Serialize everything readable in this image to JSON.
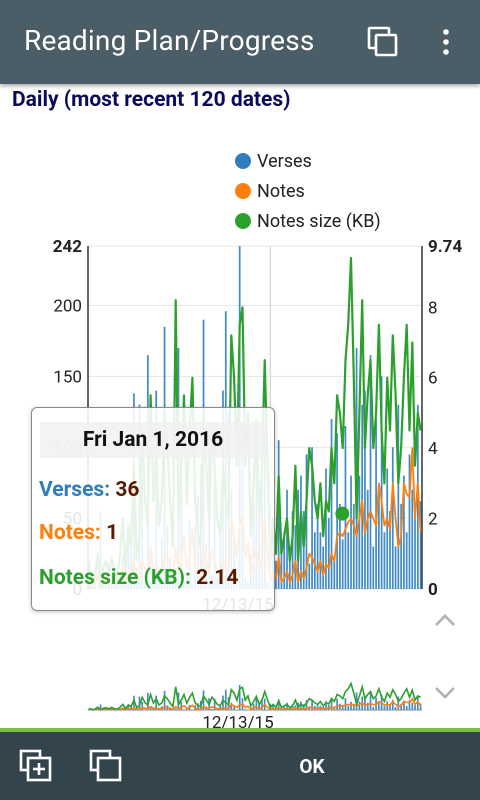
{
  "app_bar": {
    "title": "Reading Plan/Progress",
    "icons": [
      "copy-icon",
      "overflow-menu-icon"
    ]
  },
  "section_title": "Daily (most recent 120 dates)",
  "colors": {
    "verses": "#2e7ebf",
    "notes": "#ff7f0e",
    "notes_size": "#2ca02c",
    "app_bar": "#4b5d66",
    "bottom_bar": "#34444c",
    "accent_line": "#7ac143"
  },
  "chart_data": {
    "type": "bar+line",
    "title": "Daily (most recent 120 dates)",
    "legend": {
      "placement": "top",
      "entries": [
        "Verses",
        "Notes",
        "Notes size (KB)"
      ]
    },
    "y_left": {
      "min": 0,
      "max": 242,
      "ticks": [
        0,
        50,
        100,
        150,
        200,
        242
      ],
      "tick_labels": [
        "0",
        "50",
        "100",
        "150",
        "200",
        "242"
      ]
    },
    "y_right": {
      "min": 0,
      "max": 9.74,
      "ticks": [
        0,
        2,
        4,
        6,
        8,
        9.74
      ],
      "tick_labels": [
        "0",
        "2",
        "4",
        "6",
        "8",
        "9.74"
      ]
    },
    "x": {
      "count": 120,
      "labeled_tick": {
        "index": 65,
        "label": "12/13/15"
      }
    },
    "grid": true,
    "series": [
      {
        "name": "Verses",
        "type": "bar",
        "axis": "left",
        "values": [
          20,
          5,
          3,
          2,
          55,
          4,
          8,
          18,
          10,
          5,
          12,
          3,
          25,
          6,
          40,
          50,
          138,
          15,
          130,
          78,
          4,
          165,
          25,
          15,
          140,
          11,
          35,
          185,
          45,
          22,
          5,
          15,
          170,
          80,
          6,
          12,
          48,
          3,
          45,
          65,
          88,
          190,
          32,
          115,
          10,
          108,
          8,
          40,
          140,
          196,
          125,
          70,
          36,
          3,
          242,
          115,
          8,
          5,
          25,
          60,
          118,
          70,
          100,
          110,
          5,
          60,
          50,
          20,
          105,
          35,
          40,
          70,
          30,
          55,
          45,
          70,
          80,
          55,
          95,
          18,
          100,
          40,
          60,
          40,
          30,
          85,
          50,
          120,
          20,
          110,
          60,
          35,
          115,
          40,
          80,
          60,
          170,
          80,
          130,
          140,
          70,
          165,
          30,
          120,
          70,
          150,
          40,
          85,
          55,
          100,
          30,
          130,
          60,
          80,
          40,
          95,
          70,
          50,
          130,
          62
        ]
      },
      {
        "name": "Notes",
        "type": "line",
        "axis": "right",
        "values": [
          0.2,
          0,
          0.1,
          0.4,
          0,
          0.2,
          0.3,
          0.1,
          0.3,
          0.2,
          0.1,
          0.3,
          0.6,
          0.2,
          0.5,
          0.3,
          0.8,
          0.2,
          0.4,
          0.8,
          0.6,
          0.4,
          1.2,
          0.6,
          0.7,
          0.4,
          0.5,
          1.0,
          0.9,
          0.6,
          0.3,
          1.2,
          0.5,
          0.8,
          1.5,
          0.6,
          0.9,
          1.7,
          0.6,
          0.4,
          0.3,
          1.2,
          0.8,
          0.5,
          1.1,
          0.8,
          0.5,
          0.4,
          0.8,
          0.6,
          0.5,
          2.0,
          1.5,
          0.9,
          1.8,
          2.1,
          0.9,
          1.3,
          0.4,
          0.8,
          1.2,
          0.5,
          0.9,
          2.0,
          1.0,
          0.2,
          0.5,
          0.3,
          0.9,
          0.2,
          0.3,
          0.5,
          0.2,
          0.4,
          0.8,
          0.2,
          0.5,
          0.3,
          0.6,
          1.0,
          0.9,
          0.7,
          0.5,
          0.8,
          0.4,
          0.7,
          0.6,
          1.0,
          0.8,
          1.5,
          1.6,
          1.5,
          1.7,
          1.9,
          2.0,
          1.8,
          1.5,
          2.0,
          2.5,
          1.6,
          2.0,
          2.2,
          2.0,
          1.8,
          3.0,
          2.5,
          1.8,
          2.0,
          1.7,
          3.0,
          2.0,
          1.2,
          1.5,
          3.0,
          2.7,
          2.6,
          4.0,
          2.0,
          3.0,
          1.6
        ]
      },
      {
        "name": "Notes size (KB)",
        "type": "line",
        "axis": "right",
        "values": [
          0.5,
          0.2,
          0.3,
          1.0,
          0.1,
          0.6,
          0.8,
          0.4,
          0.9,
          0.5,
          0.3,
          1.0,
          2.0,
          0.5,
          1.8,
          1.2,
          3.5,
          0.8,
          1.6,
          4.5,
          2.5,
          1.8,
          5.5,
          2.5,
          4.0,
          1.8,
          2.5,
          5.0,
          4.0,
          2.5,
          1.2,
          8.2,
          2.0,
          3.5,
          5.5,
          2.4,
          4.5,
          6.0,
          2.5,
          1.6,
          1.2,
          5.0,
          3.5,
          2.0,
          4.5,
          3.4,
          2.0,
          1.5,
          3.5,
          2.5,
          2.0,
          7.2,
          6.0,
          3.5,
          7.5,
          8.0,
          3.5,
          5.0,
          1.5,
          3.0,
          4.8,
          2.0,
          3.5,
          6.5,
          3.6,
          0.8,
          2.0,
          1.0,
          3.2,
          1.0,
          1.5,
          2.0,
          0.8,
          1.5,
          3.5,
          0.8,
          2.2,
          1.2,
          2.5,
          4.0,
          3.5,
          2.5,
          2.0,
          3.0,
          1.5,
          2.5,
          2.2,
          4.0,
          3.0,
          5.5,
          5.0,
          4.0,
          6.5,
          7.5,
          9.4,
          6.0,
          2.0,
          5.0,
          8.2,
          4.0,
          5.5,
          6.5,
          4.0,
          5.0,
          7.5,
          4.5,
          3.0,
          6.0,
          4.5,
          7.2,
          5.5,
          3.0,
          4.0,
          6.0,
          7.5,
          4.5,
          7.0,
          3.5,
          5.0,
          4.5
        ]
      }
    ],
    "overview": {
      "tick_label": "12/13/15"
    }
  },
  "tooltip": {
    "date": "Fri Jan 1, 2016",
    "rows": [
      {
        "label": "Verses:",
        "value": "36"
      },
      {
        "label": "Notes:",
        "value": "1"
      },
      {
        "label": "Notes size (KB):",
        "value": "2.14"
      }
    ]
  },
  "bottom_bar": {
    "ok_label": "OK"
  }
}
